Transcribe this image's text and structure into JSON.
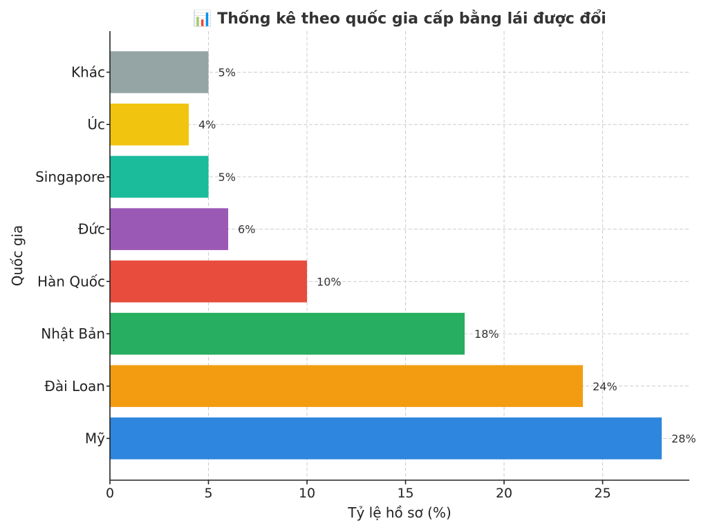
{
  "chart_data": {
    "type": "bar",
    "orientation": "horizontal",
    "title": "📊 Thống kê theo quốc gia cấp bằng lái được đổi",
    "xlabel": "Tỷ lệ hồ sơ (%)",
    "ylabel": "Quốc gia",
    "categories": [
      "Mỹ",
      "Đài Loan",
      "Nhật Bản",
      "Hàn Quốc",
      "Đức",
      "Singapore",
      "Úc",
      "Khác"
    ],
    "values": [
      28,
      24,
      18,
      10,
      6,
      5,
      4,
      5
    ],
    "value_labels": [
      "28%",
      "24%",
      "18%",
      "10%",
      "6%",
      "5%",
      "4%",
      "5%"
    ],
    "colors": [
      "#2e86de",
      "#f39c12",
      "#27ae60",
      "#e74c3c",
      "#9b59b6",
      "#1abc9c",
      "#f1c40f",
      "#95a5a6"
    ],
    "xticks": [
      0,
      5,
      10,
      15,
      20,
      25
    ],
    "xlim": [
      0,
      29.4
    ],
    "grid": true
  }
}
